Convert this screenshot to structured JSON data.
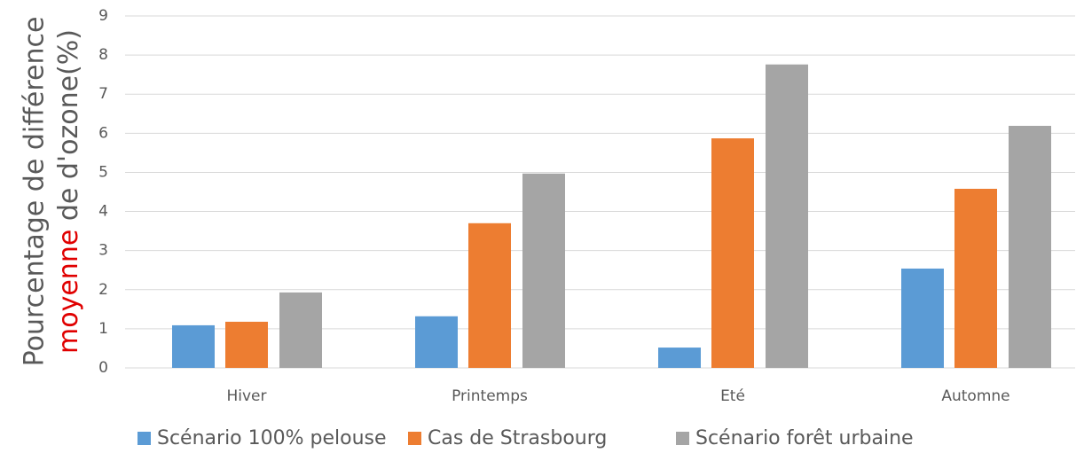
{
  "chart_data": {
    "type": "bar",
    "ylabel": {
      "line1": "Pourcentage de différence",
      "line2_highlight": "moyenne",
      "line2_rest": " de d'ozone(%)",
      "highlight_color": "#e00000"
    },
    "categories": [
      "Hiver",
      "Printemps",
      "Eté",
      "Automne"
    ],
    "series": [
      {
        "name": "Scénario 100% pelouse",
        "color": "#5b9bd5",
        "values": [
          1.09,
          1.32,
          0.52,
          2.54
        ]
      },
      {
        "name": "Cas de Strasbourg",
        "color": "#ed7d31",
        "values": [
          1.18,
          3.7,
          5.87,
          4.58
        ]
      },
      {
        "name": "Scénario forêt urbaine",
        "color": "#a5a5a5",
        "values": [
          1.93,
          4.97,
          7.76,
          6.19
        ]
      }
    ],
    "ylim": [
      0,
      9
    ],
    "yticks": [
      0,
      1,
      2,
      3,
      4,
      5,
      6,
      7,
      8,
      9
    ],
    "grid": true,
    "legend": "bottom"
  }
}
